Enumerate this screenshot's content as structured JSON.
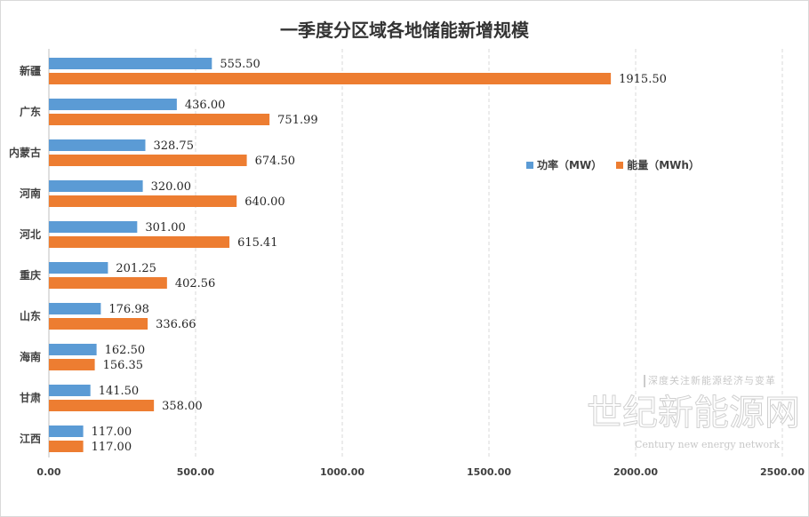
{
  "chart_data": {
    "type": "bar",
    "orientation": "horizontal",
    "title": "一季度分区域各地储能新增规模",
    "categories": [
      "新疆",
      "广东",
      "内蒙古",
      "河南",
      "河北",
      "重庆",
      "山东",
      "海南",
      "甘肃",
      "江西"
    ],
    "series": [
      {
        "name": "功率（MW）",
        "color": "#5b9bd5",
        "values": [
          555.5,
          436.0,
          328.75,
          320.0,
          301.0,
          201.25,
          176.98,
          162.5,
          141.5,
          117.0
        ],
        "labels": [
          "555.50",
          "436.00",
          "328.75",
          "320.00",
          "301.00",
          "201.25",
          "176.98",
          "162.50",
          "141.50",
          "117.00"
        ]
      },
      {
        "name": "能量（MWh）",
        "color": "#ed7d31",
        "values": [
          1915.5,
          751.99,
          674.5,
          640.0,
          615.41,
          402.56,
          336.66,
          156.35,
          358.0,
          117.0
        ],
        "labels": [
          "1915.50",
          "751.99",
          "674.50",
          "640.00",
          "615.41",
          "402.56",
          "336.66",
          "156.35",
          "358.00",
          "117.00"
        ]
      }
    ],
    "xlim": [
      0,
      2500
    ],
    "xticks": [
      "0.00",
      "500.00",
      "1000.00",
      "1500.00",
      "2000.00",
      "2500.00"
    ],
    "grid": true,
    "legend_position": "right"
  },
  "watermark": {
    "slogan": "深度关注新能源经济与变革",
    "logo": "世纪新能源网",
    "english": "Century new energy network"
  }
}
